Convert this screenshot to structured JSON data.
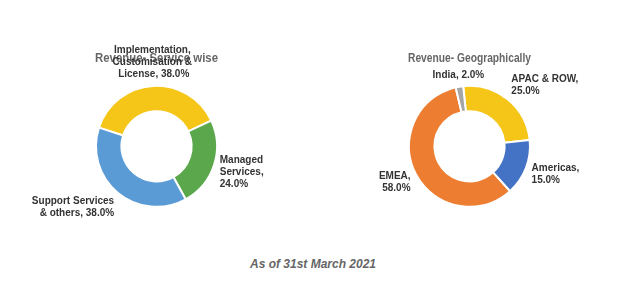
{
  "chart_data": [
    {
      "type": "donut",
      "title": "Revenue- Service wise",
      "categories": [
        "Implementation,\nCustomisation &\n License, 38.0%",
        "Managed\nServices,\n24.0%",
        "Support Services\n& others, 38.0%"
      ],
      "values": [
        38,
        24,
        38
      ],
      "colors": [
        "#F5C518",
        "#5BA84C",
        "#5B9BD5"
      ]
    },
    {
      "type": "donut",
      "title": "Revenue- Geographically",
      "categories": [
        "APAC & ROW,\n25.0%",
        "Americas,\n15.0%",
        "EMEA,\n58.0%",
        "India, 2.0%"
      ],
      "values": [
        25,
        15,
        58,
        2
      ],
      "colors": [
        "#F5C518",
        "#4472C4",
        "#ED7D31",
        "#A5A5A5"
      ]
    }
  ],
  "annotations": [
    "As of 31st March 2021"
  ]
}
